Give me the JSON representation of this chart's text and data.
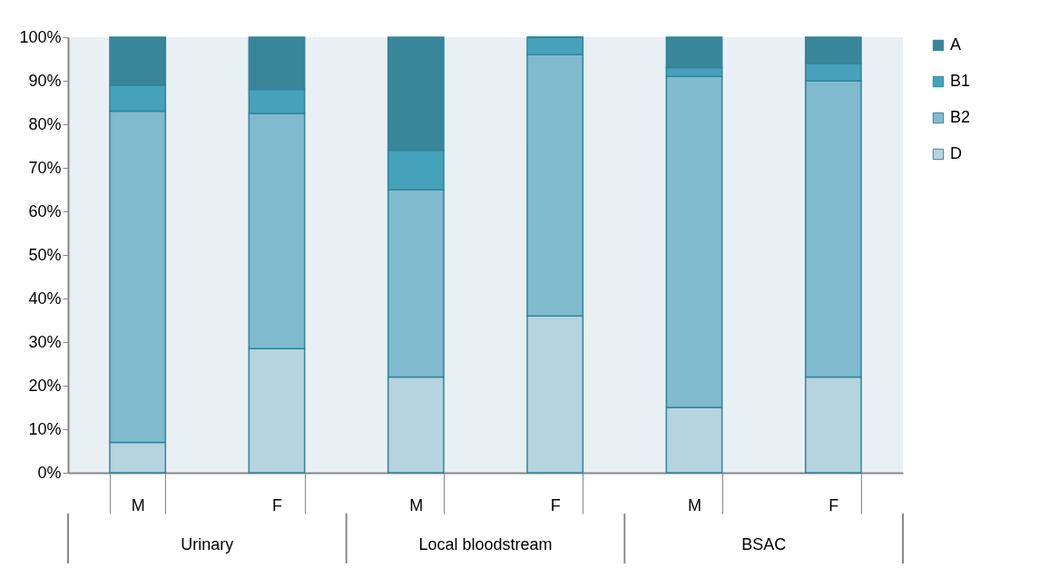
{
  "chart_data": {
    "type": "bar",
    "stacked": true,
    "categories": [
      "M",
      "F",
      "M",
      "F",
      "M",
      "F"
    ],
    "annotations": [
      "Urinary",
      "Local bloodstream",
      "BSAC"
    ],
    "series": [
      {
        "name": "D",
        "color": "#b5d4df",
        "values": [
          7,
          28.5,
          22,
          36,
          15,
          22
        ]
      },
      {
        "name": "B2",
        "color": "#7fbacf",
        "values": [
          76,
          54,
          43,
          60,
          76,
          68
        ]
      },
      {
        "name": "B1",
        "color": "#46a2ba",
        "values": [
          6,
          5.5,
          9,
          4,
          2,
          4
        ]
      },
      {
        "name": "A",
        "color": "#39869a",
        "values": [
          11,
          12,
          26,
          0,
          7,
          6
        ]
      }
    ],
    "ylim": [
      0,
      100
    ],
    "yticks": [
      {
        "value": 0,
        "label": "0%"
      },
      {
        "value": 10,
        "label": "10%"
      },
      {
        "value": 20,
        "label": "20%"
      },
      {
        "value": 30,
        "label": "30%"
      },
      {
        "value": 40,
        "label": "40%"
      },
      {
        "value": 50,
        "label": "50%"
      },
      {
        "value": 60,
        "label": "60%"
      },
      {
        "value": 70,
        "label": "70%"
      },
      {
        "value": 80,
        "label": "80%"
      },
      {
        "value": 90,
        "label": "90%"
      },
      {
        "value": 100,
        "label": "100%"
      }
    ],
    "grid": false,
    "legend": "right"
  }
}
